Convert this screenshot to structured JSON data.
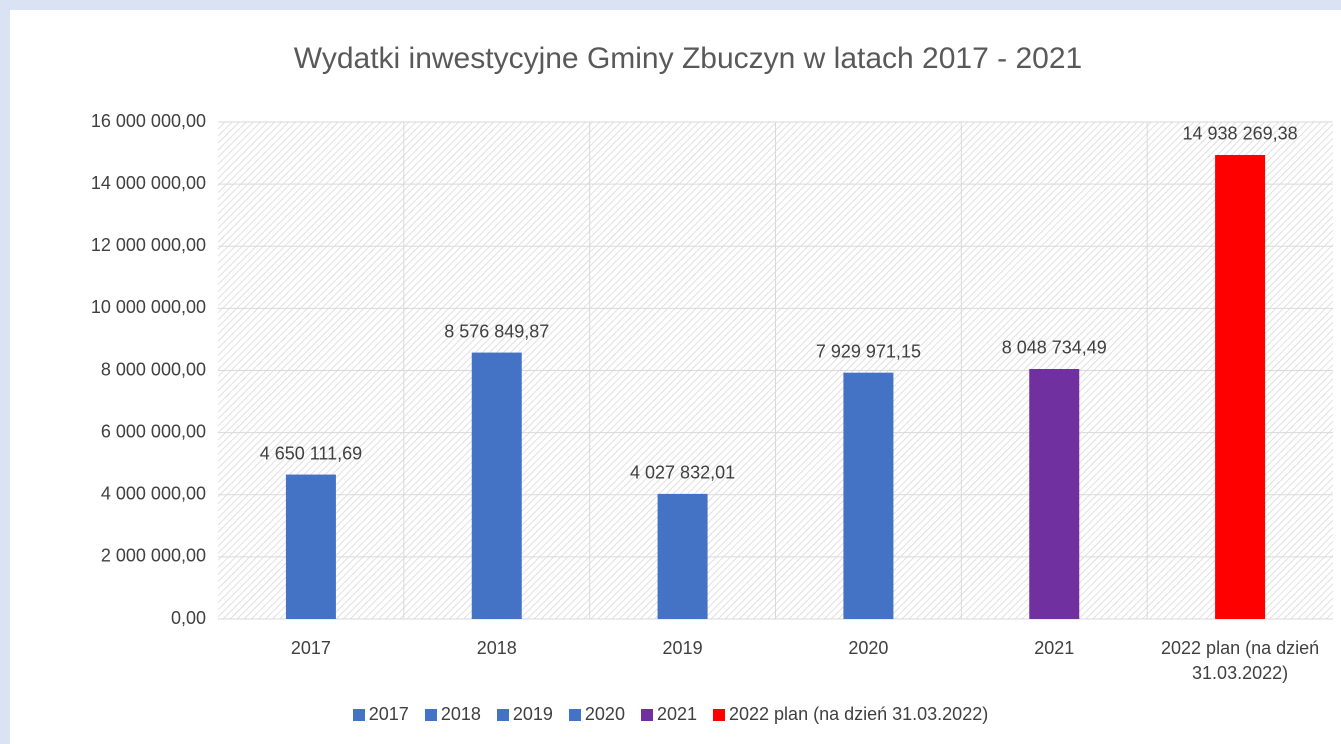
{
  "chart_data": {
    "type": "bar",
    "title": "Wydatki inwestycyjne Gminy Zbuczyn w latach 2017 - 2021",
    "categories": [
      "2017",
      "2018",
      "2019",
      "2020",
      "2021",
      "2022 plan (na dzień 31.03.2022)"
    ],
    "values": [
      4650111.69,
      8576849.87,
      4027832.01,
      7929971.15,
      8048734.49,
      14938269.38
    ],
    "value_labels": [
      "4 650 111,69",
      "8 576 849,87",
      "4 027 832,01",
      "7 929 971,15",
      "8 048 734,49",
      "14 938 269,38"
    ],
    "colors": [
      "#4472c4",
      "#4472c4",
      "#4472c4",
      "#4472c4",
      "#7030a0",
      "#ff0000"
    ],
    "ylim": [
      0,
      16000000
    ],
    "yticks": [
      {
        "value": 0,
        "label": "0,00"
      },
      {
        "value": 2000000,
        "label": "2 000 000,00"
      },
      {
        "value": 4000000,
        "label": "4 000 000,00"
      },
      {
        "value": 6000000,
        "label": "6 000 000,00"
      },
      {
        "value": 8000000,
        "label": "8 000 000,00"
      },
      {
        "value": 10000000,
        "label": "10 000 000,00"
      },
      {
        "value": 12000000,
        "label": "12 000 000,00"
      },
      {
        "value": 14000000,
        "label": "14 000 000,00"
      },
      {
        "value": 16000000,
        "label": "16 000 000,00"
      }
    ],
    "grid": true,
    "legend": "bottom"
  }
}
